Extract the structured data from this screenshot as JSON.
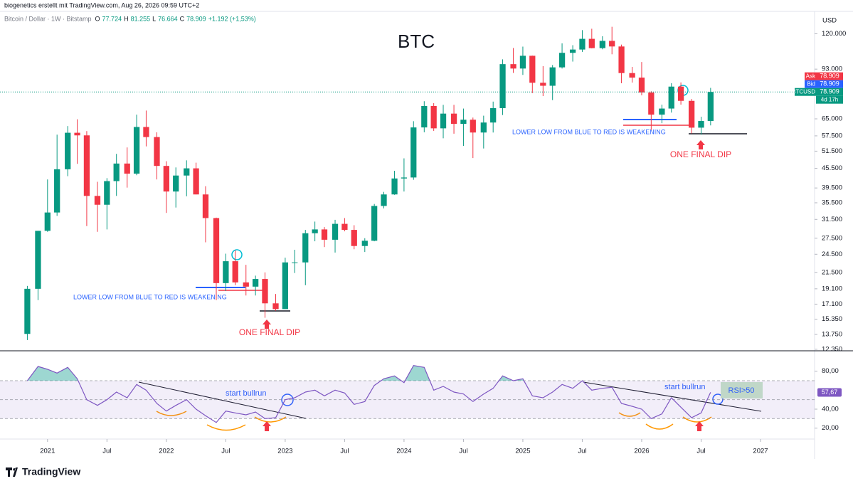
{
  "header": {
    "attribution": "biogenetics erstellt mit TradingView.com, Aug 26, 2026 09:59 UTC+2",
    "symbol": "Bitcoin / Dollar · 1W · Bitstamp",
    "ohlc": [
      {
        "key": "O",
        "value": "77.724"
      },
      {
        "key": "H",
        "value": "81.255"
      },
      {
        "key": "L",
        "value": "76.664"
      },
      {
        "key": "C",
        "value": "78.909"
      }
    ],
    "change": "+1.192 (+1,53%)",
    "currency": "USD"
  },
  "footer": {
    "brand": "TradingView"
  },
  "chart_data": [
    {
      "type": "candlestick",
      "title": "BTC",
      "up_color": "#089981",
      "down_color": "#f23645",
      "log_scale": true,
      "x": [
        2020.83,
        2020.92,
        2021.0,
        2021.08,
        2021.17,
        2021.25,
        2021.33,
        2021.42,
        2021.5,
        2021.58,
        2021.67,
        2021.75,
        2021.83,
        2021.92,
        2022.0,
        2022.08,
        2022.17,
        2022.25,
        2022.33,
        2022.42,
        2022.5,
        2022.58,
        2022.67,
        2022.75,
        2022.83,
        2022.92,
        2023.0,
        2023.08,
        2023.17,
        2023.25,
        2023.33,
        2023.42,
        2023.5,
        2023.58,
        2023.67,
        2023.75,
        2023.83,
        2023.92,
        2024.0,
        2024.08,
        2024.17,
        2024.25,
        2024.33,
        2024.42,
        2024.5,
        2024.58,
        2024.67,
        2024.75,
        2024.83,
        2024.92,
        2025.0,
        2025.08,
        2025.17,
        2025.25,
        2025.33,
        2025.42,
        2025.5,
        2025.58,
        2025.67,
        2025.75,
        2025.83,
        2025.92,
        2026.0,
        2026.08,
        2026.17,
        2026.25,
        2026.33,
        2026.42,
        2026.5,
        2026.58
      ],
      "open": [
        13800,
        19100,
        29000,
        33100,
        45200,
        58800,
        57700,
        37300,
        35000,
        41500,
        47100,
        43800,
        61300,
        57000,
        46300,
        38500,
        43200,
        45500,
        37700,
        31800,
        19900,
        23300,
        20000,
        19400,
        20500,
        17200,
        16500,
        23100,
        23100,
        28500,
        29300,
        27200,
        30500,
        29200,
        26000,
        27000,
        34700,
        37700,
        42300,
        42600,
        61100,
        71300,
        60700,
        67500,
        62700,
        64600,
        58900,
        63300,
        70200,
        96400,
        93400,
        102400,
        84300,
        82500,
        94200,
        104600,
        107100,
        115700,
        108200,
        114000,
        109500,
        90400,
        87500,
        78600,
        67000,
        70000,
        82000,
        74000,
        61000,
        64000
      ],
      "high": [
        19500,
        29000,
        42000,
        58000,
        61700,
        64800,
        59500,
        41300,
        42400,
        50500,
        52900,
        67000,
        69000,
        59000,
        47900,
        45800,
        48200,
        47400,
        40000,
        31900,
        24600,
        25200,
        22700,
        21000,
        21500,
        18400,
        23900,
        25300,
        29200,
        31000,
        29800,
        31400,
        31800,
        30200,
        27500,
        35200,
        38400,
        44700,
        48900,
        63900,
        73800,
        72800,
        71900,
        71900,
        70000,
        65600,
        66500,
        73600,
        99800,
        108300,
        109400,
        102500,
        95000,
        95800,
        112000,
        110500,
        123200,
        124400,
        117900,
        126200,
        111000,
        94500,
        97900,
        79300,
        72000,
        84000,
        84500,
        75000,
        66000,
        81255
      ],
      "low": [
        13200,
        17600,
        28800,
        32300,
        43000,
        47000,
        30000,
        28800,
        29300,
        37300,
        39600,
        43300,
        53300,
        42000,
        33000,
        34300,
        37200,
        37700,
        26700,
        17600,
        18800,
        19600,
        18200,
        18200,
        15500,
        16300,
        16500,
        21400,
        19600,
        26900,
        25800,
        24800,
        28900,
        25400,
        24900,
        26900,
        34100,
        37600,
        38500,
        41900,
        59000,
        59600,
        56500,
        58400,
        53500,
        49000,
        52500,
        58900,
        66800,
        90500,
        89200,
        78200,
        76600,
        74400,
        93400,
        98200,
        105300,
        108000,
        107300,
        103500,
        84000,
        84400,
        77000,
        60000,
        63000,
        68000,
        72000,
        58500,
        58000,
        62000
      ],
      "close": [
        19100,
        29000,
        33100,
        45200,
        58800,
        57700,
        37300,
        35000,
        41500,
        47100,
        43800,
        61300,
        57000,
        46300,
        38500,
        43200,
        45500,
        37700,
        31800,
        19900,
        23300,
        20000,
        19400,
        20500,
        17200,
        16500,
        23100,
        23100,
        28500,
        29300,
        27200,
        30500,
        29200,
        26000,
        27000,
        34700,
        37700,
        42300,
        42600,
        61100,
        71300,
        60700,
        67500,
        62700,
        64600,
        58900,
        63300,
        70200,
        96400,
        93400,
        102400,
        84300,
        82500,
        94200,
        104600,
        107100,
        115700,
        108200,
        114000,
        109500,
        90400,
        87500,
        78600,
        67000,
        70000,
        82000,
        74000,
        61000,
        64000,
        78909
      ],
      "xlim": [
        2020.6,
        2027.455
      ],
      "xticks": [
        2021,
        {
          "value": 2021.5,
          "label": "Jul"
        },
        2022,
        {
          "value": 2022.5,
          "label": "Jul"
        },
        2023,
        {
          "value": 2023.5,
          "label": "Jul"
        },
        2024,
        {
          "value": 2024.5,
          "label": "Jul"
        },
        2025,
        {
          "value": 2025.5,
          "label": "Jul"
        },
        2026,
        {
          "value": 2026.5,
          "label": "Jul"
        },
        2027
      ],
      "ylim": [
        12280,
        141000
      ],
      "yticks": [
        {
          "value": 12350,
          "label": "12.350"
        },
        {
          "value": 13750,
          "label": "13.750"
        },
        {
          "value": 15350,
          "label": "15.350"
        },
        {
          "value": 17100,
          "label": "17.100"
        },
        {
          "value": 19100,
          "label": "19.100"
        },
        {
          "value": 21500,
          "label": "21.500"
        },
        {
          "value": 24500,
          "label": "24.500"
        },
        {
          "value": 27500,
          "label": "27.500"
        },
        {
          "value": 31500,
          "label": "31.500"
        },
        {
          "value": 35500,
          "label": "35.500"
        },
        {
          "value": 39500,
          "label": "39.500"
        },
        {
          "value": 45500,
          "label": "45.500"
        },
        {
          "value": 51500,
          "label": "51.500"
        },
        {
          "value": 57500,
          "label": "57.500"
        },
        {
          "value": 65000,
          "label": "65.000"
        },
        {
          "value": 93000,
          "label": "93.000"
        },
        {
          "value": 120000,
          "label": "120.000"
        }
      ],
      "price_labels": [
        {
          "name": "Ask",
          "value": 78909,
          "label": "78.909",
          "color": "#f23645"
        },
        {
          "name": "Bid",
          "value": 78909,
          "label": "78.909",
          "color": "#2962ff"
        },
        {
          "name": "BTCUSD",
          "value": 78909,
          "label": "78.909",
          "color": "#089981"
        }
      ],
      "countdown": "4d 17h",
      "annotations": {
        "lower_low": [
          "LOWER LOW FROM BLUE TO RED IS WEAKENING",
          "LOWER LOW FROM BLUE TO RED IS WEAKENING"
        ],
        "final_dip": [
          "ONE FINAL DIP",
          "ONE FINAL DIP"
        ]
      }
    },
    {
      "type": "line",
      "color": "#7e57c2",
      "x": [
        2020.83,
        2020.92,
        2021.0,
        2021.08,
        2021.17,
        2021.25,
        2021.33,
        2021.42,
        2021.5,
        2021.58,
        2021.67,
        2021.75,
        2021.83,
        2021.92,
        2022.0,
        2022.08,
        2022.17,
        2022.25,
        2022.33,
        2022.42,
        2022.5,
        2022.58,
        2022.67,
        2022.75,
        2022.83,
        2022.92,
        2023.0,
        2023.08,
        2023.17,
        2023.25,
        2023.33,
        2023.42,
        2023.5,
        2023.58,
        2023.67,
        2023.75,
        2023.83,
        2023.92,
        2024.0,
        2024.08,
        2024.17,
        2024.25,
        2024.33,
        2024.42,
        2024.5,
        2024.58,
        2024.67,
        2024.75,
        2024.83,
        2024.92,
        2025.0,
        2025.08,
        2025.17,
        2025.25,
        2025.33,
        2025.42,
        2025.5,
        2025.58,
        2025.67,
        2025.75,
        2025.83,
        2025.92,
        2026.0,
        2026.08,
        2026.17,
        2026.25,
        2026.33,
        2026.42,
        2026.5,
        2026.58
      ],
      "values": [
        70,
        85,
        82,
        78,
        84,
        72,
        50,
        44,
        50,
        58,
        52,
        66,
        60,
        46,
        38,
        44,
        50,
        40,
        33,
        26,
        38,
        36,
        34,
        37,
        30,
        31,
        50,
        52,
        58,
        60,
        54,
        60,
        57,
        45,
        48,
        65,
        72,
        75,
        68,
        86,
        84,
        60,
        64,
        58,
        56,
        48,
        56,
        62,
        75,
        70,
        72,
        54,
        52,
        58,
        66,
        62,
        70,
        60,
        62,
        63,
        46,
        43,
        40,
        30,
        35,
        52,
        42,
        31,
        36,
        57.67
      ],
      "value_label": "57,67",
      "ylim": [
        10,
        100
      ],
      "yticks": [
        {
          "value": 20,
          "label": "20,00"
        },
        {
          "value": 40,
          "label": "40,00"
        },
        {
          "value": 80,
          "label": "80,00"
        }
      ],
      "levels": [
        30,
        50,
        70
      ],
      "annotations": {
        "start": [
          "start bullrun",
          "start bullrun"
        ],
        "rsi_box": "RSI>50"
      }
    }
  ]
}
